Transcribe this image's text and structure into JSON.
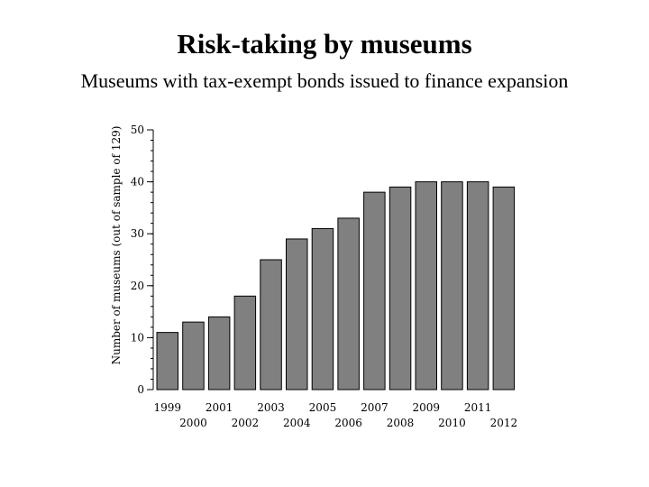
{
  "chart_data": {
    "type": "bar",
    "title": "Risk-taking by museums",
    "subtitle": "Museums with tax-exempt bonds issued to finance expansion",
    "xlabel": "",
    "ylabel": "Number of museums (out of sample of 129)",
    "categories": [
      "1999",
      "2000",
      "2001",
      "2002",
      "2003",
      "2004",
      "2005",
      "2006",
      "2007",
      "2008",
      "2009",
      "2010",
      "2011",
      "2012"
    ],
    "values": [
      11,
      13,
      14,
      18,
      25,
      29,
      31,
      33,
      38,
      39,
      40,
      40,
      40,
      39
    ],
    "ylim": [
      0,
      50
    ],
    "yticks": [
      0,
      10,
      20,
      30,
      40,
      50
    ],
    "bar_color": "#808080",
    "grid": false,
    "legend": "none"
  }
}
